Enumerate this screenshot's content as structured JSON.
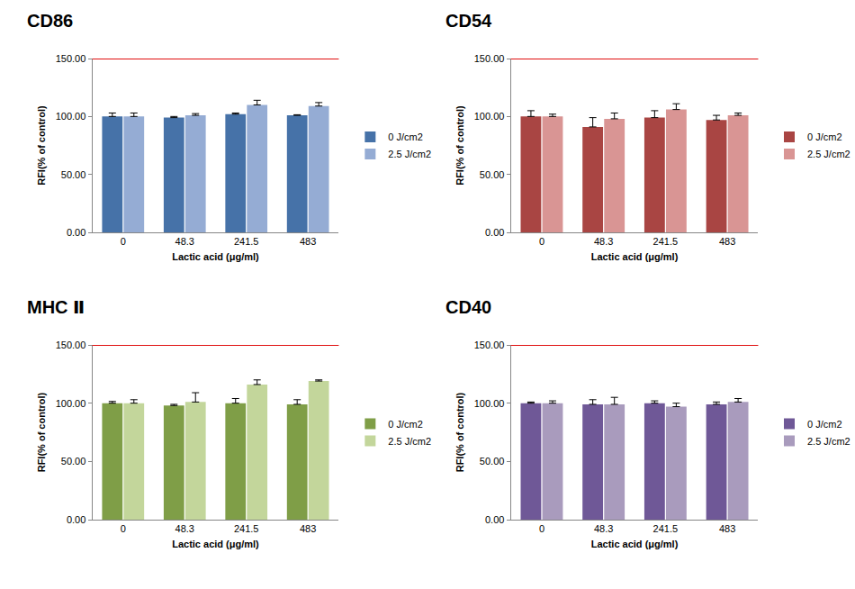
{
  "chart_data": [
    {
      "type": "bar",
      "title": "CD86",
      "x_label": "Lactic acid (μg/ml)",
      "y_label": "RFI(% of control)",
      "categories": [
        "0",
        "48.3",
        "241.5",
        "483"
      ],
      "series": [
        {
          "name": "0 J/cm2",
          "color": "#4672a8",
          "values": [
            100,
            99,
            102,
            101
          ],
          "errors": [
            3,
            1,
            1,
            0.5
          ]
        },
        {
          "name": "2.5 J/cm2",
          "color": "#95acd4",
          "values": [
            100,
            101,
            110,
            109
          ],
          "errors": [
            3,
            1.5,
            4,
            3
          ]
        }
      ],
      "ylim": [
        0,
        150
      ],
      "yticks": [
        {
          "value": 0,
          "label": "0.00"
        },
        {
          "value": 50,
          "label": "50.00"
        },
        {
          "value": 100,
          "label": "100.00"
        },
        {
          "value": 150,
          "label": "150.00"
        }
      ],
      "threshold": 150,
      "grid": false,
      "legend": "right"
    },
    {
      "type": "bar",
      "title": "CD54",
      "x_label": "Lactic acid (μg/ml)",
      "y_label": "RFI(% of control)",
      "categories": [
        "0",
        "48.3",
        "241.5",
        "483"
      ],
      "series": [
        {
          "name": "0 J/cm2",
          "color": "#a94543",
          "values": [
            100,
            91,
            99,
            97
          ],
          "errors": [
            5,
            8,
            6,
            4
          ]
        },
        {
          "name": "2.5 J/cm2",
          "color": "#d99594",
          "values": [
            100,
            98,
            106,
            101
          ],
          "errors": [
            2,
            5,
            5,
            2
          ]
        }
      ],
      "ylim": [
        0,
        150
      ],
      "yticks": [
        {
          "value": 0,
          "label": "0.00"
        },
        {
          "value": 50,
          "label": "50.00"
        },
        {
          "value": 100,
          "label": "100.00"
        },
        {
          "value": 150,
          "label": "150.00"
        }
      ],
      "threshold": 150,
      "grid": false,
      "legend": "right"
    },
    {
      "type": "bar",
      "title": "MHC Ⅱ",
      "x_label": "Lactic acid (μg/ml)",
      "y_label": "RFI(% of control)",
      "categories": [
        "0",
        "48.3",
        "241.5",
        "483"
      ],
      "series": [
        {
          "name": "0 J/cm2",
          "color": "#7f9e47",
          "values": [
            100,
            98,
            100,
            99
          ],
          "errors": [
            1.5,
            1,
            4,
            4
          ]
        },
        {
          "name": "2.5 J/cm2",
          "color": "#c3d69b",
          "values": [
            100,
            101,
            116,
            119
          ],
          "errors": [
            3,
            8,
            4,
            1
          ]
        }
      ],
      "ylim": [
        0,
        150
      ],
      "yticks": [
        {
          "value": 0,
          "label": "0.00"
        },
        {
          "value": 50,
          "label": "50.00"
        },
        {
          "value": 100,
          "label": "100.00"
        },
        {
          "value": 150,
          "label": "150.00"
        }
      ],
      "threshold": 150,
      "grid": false,
      "legend": "right"
    },
    {
      "type": "bar",
      "title": "CD40",
      "x_label": "Lactic acid (μg/ml)",
      "y_label": "RFI(% of control)",
      "categories": [
        "0",
        "48.3",
        "241.5",
        "483"
      ],
      "series": [
        {
          "name": "0 J/cm2",
          "color": "#6f5897",
          "values": [
            100,
            99,
            100,
            99
          ],
          "errors": [
            1,
            4,
            2,
            2
          ]
        },
        {
          "name": "2.5 J/cm2",
          "color": "#a99bbd",
          "values": [
            100,
            99,
            97,
            101
          ],
          "errors": [
            2,
            6,
            3,
            3
          ]
        }
      ],
      "ylim": [
        0,
        150
      ],
      "yticks": [
        {
          "value": 0,
          "label": "0.00"
        },
        {
          "value": 50,
          "label": "50.00"
        },
        {
          "value": 100,
          "label": "100.00"
        },
        {
          "value": 150,
          "label": "150.00"
        }
      ],
      "threshold": 150,
      "grid": false,
      "legend": "right"
    }
  ]
}
